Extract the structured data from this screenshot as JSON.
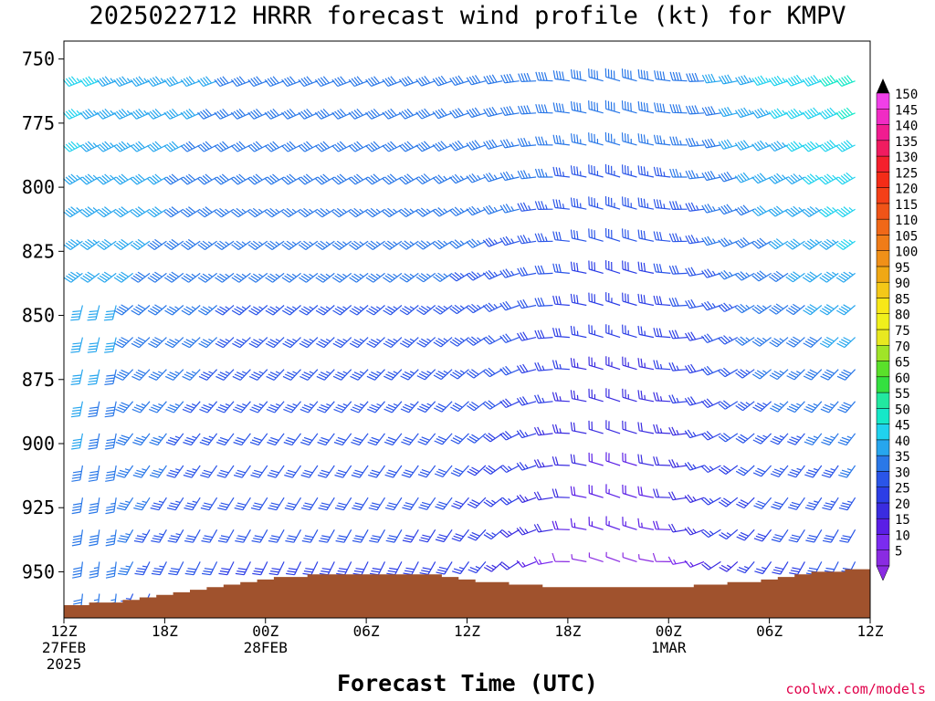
{
  "chart_data": {
    "type": "wind-barb-time-height",
    "title": "2025022712 HRRR forecast wind profile (kt) for KMPV",
    "xlabel": "Forecast Time (UTC)",
    "ylabel": "",
    "credit": "coolwx.com/models",
    "y_ticks": [
      750,
      775,
      800,
      825,
      850,
      875,
      900,
      925,
      950
    ],
    "ylim": [
      968,
      743
    ],
    "xlim": [
      0,
      48
    ],
    "x_ticks": [
      {
        "hour": 0,
        "line1": "12Z",
        "line2": "27FEB",
        "line3": "2025"
      },
      {
        "hour": 6,
        "line1": "18Z",
        "line2": "",
        "line3": ""
      },
      {
        "hour": 12,
        "line1": "00Z",
        "line2": "28FEB",
        "line3": ""
      },
      {
        "hour": 18,
        "line1": "06Z",
        "line2": "",
        "line3": ""
      },
      {
        "hour": 24,
        "line1": "12Z",
        "line2": "",
        "line3": ""
      },
      {
        "hour": 30,
        "line1": "18Z",
        "line2": "",
        "line3": ""
      },
      {
        "hour": 36,
        "line1": "00Z",
        "line2": "1MAR",
        "line3": ""
      },
      {
        "hour": 42,
        "line1": "06Z",
        "line2": "",
        "line3": ""
      },
      {
        "hour": 48,
        "line1": "12Z",
        "line2": "",
        "line3": ""
      }
    ],
    "colorbar": {
      "levels": [
        5,
        10,
        15,
        20,
        25,
        30,
        35,
        40,
        45,
        50,
        55,
        60,
        65,
        70,
        75,
        80,
        85,
        90,
        95,
        100,
        105,
        110,
        115,
        120,
        125,
        130,
        135,
        140,
        145,
        150
      ],
      "colors": [
        "#8a2be2",
        "#7b2bf0",
        "#5a1ee6",
        "#3a2ce0",
        "#2c3ee6",
        "#2a55e8",
        "#2a78e8",
        "#27a6ee",
        "#20d2ee",
        "#16e8c8",
        "#22e8a0",
        "#34e040",
        "#5ae02a",
        "#a0e428",
        "#e8e820",
        "#f0f01c",
        "#f8e818",
        "#f4c818",
        "#f0a814",
        "#f09018",
        "#f07c18",
        "#f06818",
        "#f05418",
        "#f44018",
        "#f42c18",
        "#f4202c",
        "#f01c60",
        "#f01c90",
        "#f02cc4",
        "#f040e8"
      ]
    },
    "surface_pressure": [
      963,
      963,
      962,
      962,
      961,
      960,
      959,
      958,
      957,
      956,
      955,
      954,
      953,
      952,
      952,
      951,
      951,
      951,
      951,
      951,
      951,
      951,
      951,
      952,
      953,
      954,
      954,
      955,
      955,
      956,
      956,
      956,
      956,
      956,
      956,
      956,
      956,
      956,
      955,
      955,
      954,
      954,
      953,
      952,
      951,
      950,
      950,
      949,
      949
    ],
    "level_step_hpa": 12.5,
    "wind_profile_model": {
      "description": "wind barbs every 2 forecast hours (hour 1-47) at 12.5 hPa spacing; values in knots and degrees",
      "upper_direction_deg": 250,
      "lower_direction_deg": 200,
      "max_speed_kt": 50,
      "min_speed_kt": 5
    }
  }
}
